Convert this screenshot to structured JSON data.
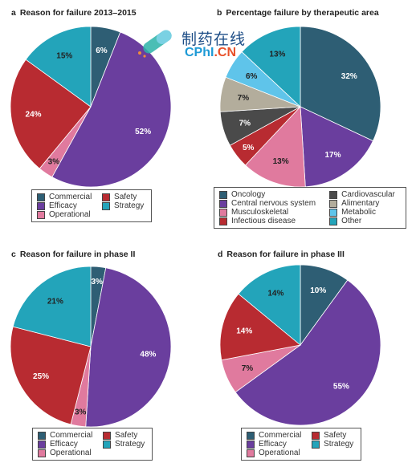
{
  "colors": {
    "Commercial": "#2e5e74",
    "Efficacy": "#6a3e9e",
    "Operational": "#e07a9e",
    "Safety": "#b82b31",
    "Strategy": "#23a4ba",
    "Oncology": "#2e5e74",
    "Central nervous system": "#6a3e9e",
    "Musculoskeletal": "#e07a9e",
    "Infectious disease": "#b82b31",
    "Cardiovascular": "#4a4a4a",
    "Alimentary": "#b3ad9c",
    "Metabolic": "#5fc4ea",
    "Other": "#23a4ba"
  },
  "watermark": {
    "text_cn": "制药在线",
    "text_en_main": "CPhI",
    "text_en_suffix": ".CN"
  },
  "chart_data": [
    {
      "type": "pie",
      "letter": "a",
      "title": "Reason for failure 2013–2015",
      "slices": [
        {
          "label": "Commercial",
          "value": 6,
          "display": "6%"
        },
        {
          "label": "Efficacy",
          "value": 52,
          "display": "52%"
        },
        {
          "label": "Operational",
          "value": 3,
          "display": "3%"
        },
        {
          "label": "Safety",
          "value": 24,
          "display": "24%"
        },
        {
          "label": "Strategy",
          "value": 15,
          "display": "15%"
        }
      ],
      "legend": [
        "Commercial",
        "Safety",
        "Efficacy",
        "Strategy",
        "Operational"
      ]
    },
    {
      "type": "pie",
      "letter": "b",
      "title": "Percentage failure by therapeutic area",
      "slices": [
        {
          "label": "Oncology",
          "value": 32,
          "display": "32%"
        },
        {
          "label": "Central nervous system",
          "value": 17,
          "display": "17%"
        },
        {
          "label": "Musculoskeletal",
          "value": 13,
          "display": "13%"
        },
        {
          "label": "Infectious disease",
          "value": 5,
          "display": "5%"
        },
        {
          "label": "Cardiovascular",
          "value": 7,
          "display": "7%"
        },
        {
          "label": "Alimentary",
          "value": 7,
          "display": "7%"
        },
        {
          "label": "Metabolic",
          "value": 6,
          "display": "6%"
        },
        {
          "label": "Other",
          "value": 13,
          "display": "13%"
        }
      ],
      "legend": [
        "Oncology",
        "Cardiovascular",
        "Central nervous system",
        "Alimentary",
        "Musculoskeletal",
        "Metabolic",
        "Infectious disease",
        "Other"
      ]
    },
    {
      "type": "pie",
      "letter": "c",
      "title": "Reason for failure in phase II",
      "slices": [
        {
          "label": "Commercial",
          "value": 3,
          "display": "3%"
        },
        {
          "label": "Efficacy",
          "value": 48,
          "display": "48%"
        },
        {
          "label": "Operational",
          "value": 3,
          "display": "3%"
        },
        {
          "label": "Safety",
          "value": 25,
          "display": "25%"
        },
        {
          "label": "Strategy",
          "value": 21,
          "display": "21%"
        }
      ],
      "legend": [
        "Commercial",
        "Safety",
        "Efficacy",
        "Strategy",
        "Operational"
      ]
    },
    {
      "type": "pie",
      "letter": "d",
      "title": "Reason for failure in phase III",
      "slices": [
        {
          "label": "Commercial",
          "value": 10,
          "display": "10%"
        },
        {
          "label": "Efficacy",
          "value": 55,
          "display": "55%"
        },
        {
          "label": "Operational",
          "value": 7,
          "display": "7%"
        },
        {
          "label": "Safety",
          "value": 14,
          "display": "14%"
        },
        {
          "label": "Strategy",
          "value": 14,
          "display": "14%"
        }
      ],
      "legend": [
        "Commercial",
        "Safety",
        "Efficacy",
        "Strategy",
        "Operational"
      ]
    }
  ]
}
